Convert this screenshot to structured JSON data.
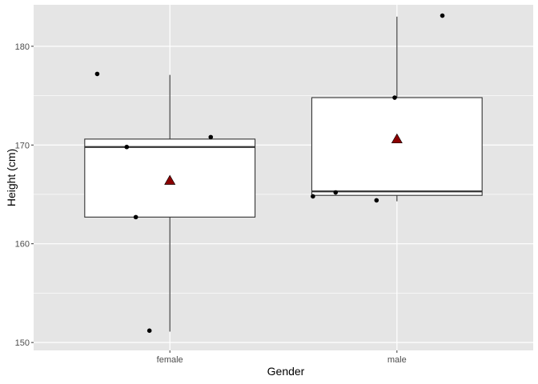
{
  "chart_data": {
    "type": "boxplot",
    "title": "",
    "xlabel": "Gender",
    "ylabel": "Height (cm)",
    "categories": [
      "female",
      "male"
    ],
    "ylim": [
      149.2,
      184.2
    ],
    "y_ticks": [
      150,
      160,
      170,
      180
    ],
    "grid": true,
    "panel_background": "#e5e5e5",
    "grid_color": "#ffffff",
    "box_fill": "#ffffff",
    "box_stroke": "#333333",
    "point_color": "#000000",
    "mean_marker_color": "#8b0000",
    "boxes": [
      {
        "category": "female",
        "min": 151.1,
        "q1": 162.7,
        "median": 169.8,
        "q3": 170.6,
        "max": 177.1,
        "mean": 166.4
      },
      {
        "category": "male",
        "min": 164.3,
        "q1": 164.9,
        "median": 165.3,
        "q3": 174.8,
        "max": 183.0,
        "mean": 170.6
      }
    ],
    "points": [
      {
        "category": "female",
        "jitter": -0.32,
        "y": 177.2
      },
      {
        "category": "female",
        "jitter": -0.19,
        "y": 169.8
      },
      {
        "category": "female",
        "jitter": 0.18,
        "y": 170.8
      },
      {
        "category": "female",
        "jitter": -0.15,
        "y": 162.7
      },
      {
        "category": "female",
        "jitter": -0.09,
        "y": 151.2
      },
      {
        "category": "male",
        "jitter": -0.37,
        "y": 164.8
      },
      {
        "category": "male",
        "jitter": -0.27,
        "y": 165.2
      },
      {
        "category": "male",
        "jitter": -0.09,
        "y": 164.4
      },
      {
        "category": "male",
        "jitter": -0.01,
        "y": 174.8
      },
      {
        "category": "male",
        "jitter": 0.2,
        "y": 183.1
      }
    ]
  }
}
